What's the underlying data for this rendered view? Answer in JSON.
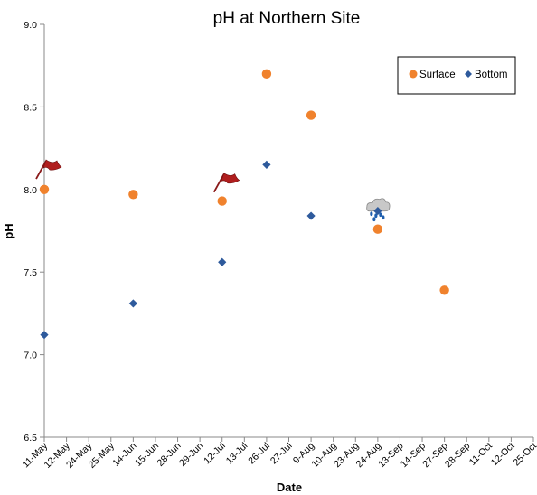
{
  "chart_data": {
    "type": "scatter",
    "title": "pH at Northern Site",
    "xlabel": "Date",
    "ylabel": "pH",
    "ylim": [
      6.5,
      9.0
    ],
    "yticks": [
      "6.5",
      "7.0",
      "7.5",
      "8.0",
      "8.5",
      "9.0"
    ],
    "xticks": [
      "11-May",
      "12-May",
      "24-May",
      "25-May",
      "14-Jun",
      "15-Jun",
      "28-Jun",
      "29-Jun",
      "12-Jul",
      "13-Jul",
      "26-Jul",
      "27-Jul",
      "9-Aug",
      "10-Aug",
      "23-Aug",
      "24-Aug",
      "13-Sep",
      "14-Sep",
      "27-Sep",
      "28-Sep",
      "11-Oct",
      "12-Oct",
      "25-Oct"
    ],
    "legend_position": "top-right",
    "grid": false,
    "series": [
      {
        "name": "Surface",
        "marker": "circle",
        "color": "#f0822d",
        "points": [
          {
            "x": "11-May",
            "y": 8.0
          },
          {
            "x": "14-Jun",
            "y": 7.97
          },
          {
            "x": "12-Jul",
            "y": 7.93
          },
          {
            "x": "26-Jul",
            "y": 8.7
          },
          {
            "x": "9-Aug",
            "y": 8.45
          },
          {
            "x": "24-Aug",
            "y": 7.76
          },
          {
            "x": "27-Sep",
            "y": 7.39
          }
        ]
      },
      {
        "name": "Bottom",
        "marker": "diamond",
        "color": "#2e5a9c",
        "points": [
          {
            "x": "11-May",
            "y": 7.12
          },
          {
            "x": "14-Jun",
            "y": 7.31
          },
          {
            "x": "12-Jul",
            "y": 7.56
          },
          {
            "x": "26-Jul",
            "y": 8.15
          },
          {
            "x": "9-Aug",
            "y": 7.84
          },
          {
            "x": "24-Aug",
            "y": 7.87
          }
        ]
      }
    ],
    "annotations": [
      {
        "type": "flag-icon",
        "x": "11-May",
        "y": 8.13,
        "color": "#b01e1e"
      },
      {
        "type": "flag-icon",
        "x": "12-Jul",
        "y": 8.05,
        "color": "#b01e1e"
      },
      {
        "type": "rain-cloud-icon",
        "x": "24-Aug",
        "y": 7.88,
        "color": "#c8c8c8"
      }
    ]
  }
}
